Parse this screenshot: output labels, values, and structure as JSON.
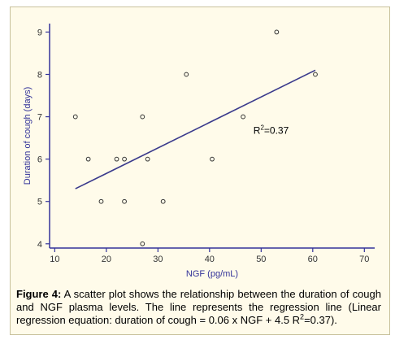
{
  "chart_data": {
    "type": "scatter",
    "xlabel": "NGF (pg/mL)",
    "ylabel": "Duration of cough (days)",
    "xlim": [
      9,
      72
    ],
    "ylim": [
      3.9,
      9.2
    ],
    "xticks": [
      10,
      20,
      30,
      40,
      50,
      60,
      70
    ],
    "yticks": [
      4,
      5,
      6,
      7,
      8,
      9
    ],
    "grid": false,
    "points": [
      {
        "x": 14,
        "y": 7
      },
      {
        "x": 16.5,
        "y": 6
      },
      {
        "x": 19,
        "y": 5
      },
      {
        "x": 22,
        "y": 6
      },
      {
        "x": 23.5,
        "y": 6
      },
      {
        "x": 23.5,
        "y": 5
      },
      {
        "x": 27,
        "y": 7
      },
      {
        "x": 27,
        "y": 4
      },
      {
        "x": 28,
        "y": 6
      },
      {
        "x": 31,
        "y": 5
      },
      {
        "x": 35.5,
        "y": 8
      },
      {
        "x": 40.5,
        "y": 6
      },
      {
        "x": 46.5,
        "y": 7
      },
      {
        "x": 53,
        "y": 9
      },
      {
        "x": 60.5,
        "y": 8
      }
    ],
    "regression_line": {
      "x1": 14,
      "y1": 5.3,
      "x2": 60.5,
      "y2": 8.1
    },
    "annotation": {
      "text": "=0.37",
      "prefix": "R",
      "superscript": "2",
      "x": 48.5,
      "y": 6.6
    },
    "colors": {
      "marker": "#333333",
      "line": "#3a3a8c",
      "axis": "#333399",
      "axis_label": "#333399",
      "tick_label": "#333333",
      "background": "#fffbea"
    }
  },
  "caption": {
    "label": "Figure 4:",
    "text_before_sup": " A scatter plot shows the relationship between the duration of cough and NGF plasma levels. The line represents the regression line (Linear regression equation: duration of cough = 0.06 x NGF + 4.5 R",
    "sup": "2",
    "text_after_sup": "=0.37)."
  }
}
